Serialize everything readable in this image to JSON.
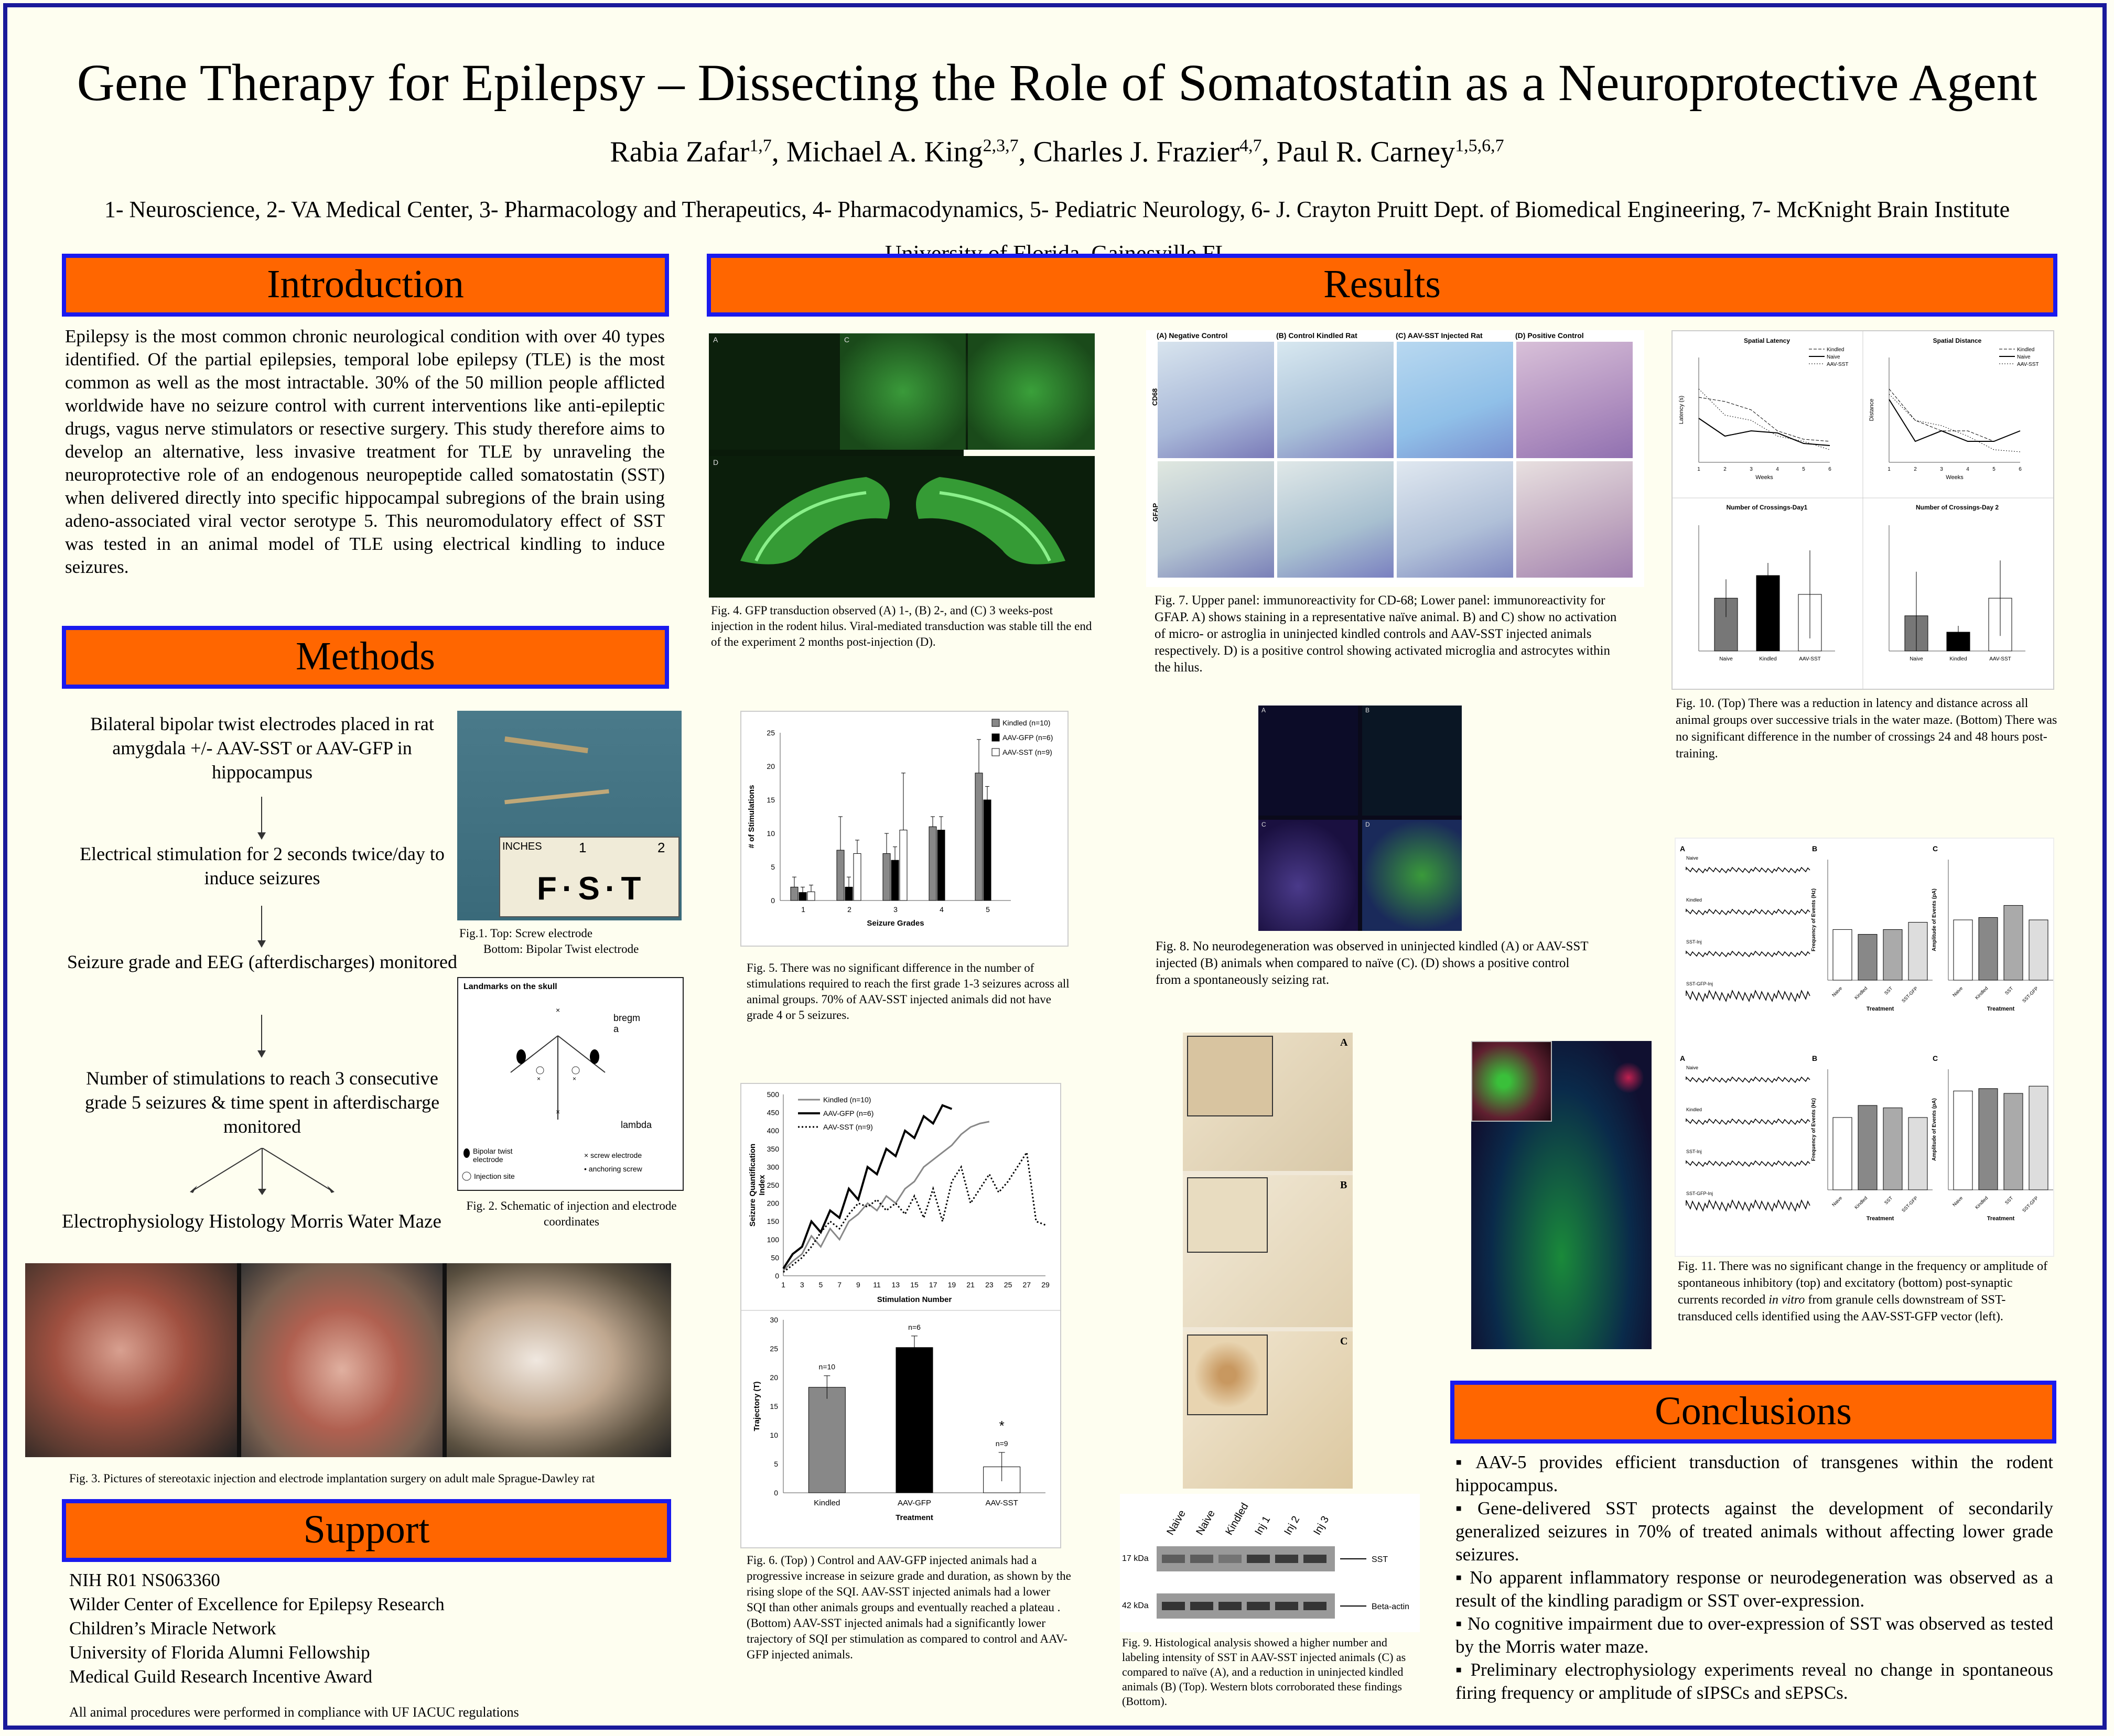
{
  "title": "Gene Therapy for Epilepsy – Dissecting the Role of Somatostatin as a Neuroprotective Agent",
  "authors": [
    {
      "name": "Rabia Zafar",
      "sup": "1,7"
    },
    {
      "name": "Michael A. King",
      "sup": "2,3,7"
    },
    {
      "name": "Charles J. Frazier",
      "sup": "4,7"
    },
    {
      "name": "Paul R. Carney",
      "sup": "1,5,6,7"
    }
  ],
  "affiliations": "1- Neuroscience, 2- VA Medical Center, 3- Pharmacology and Therapeutics, 4- Pharmacodynamics, 5- Pediatric Neurology, 6- J. Crayton Pruitt Dept. of Biomedical Engineering, 7- McKnight Brain Institute",
  "university": "University of Florida, Gainesville FL",
  "sections": {
    "introduction": "Introduction",
    "methods": "Methods",
    "support": "Support",
    "results": "Results",
    "conclusions": "Conclusions"
  },
  "introduction_text": "Epilepsy is the most common chronic neurological condition with over 40 types identified. Of the partial epilepsies, temporal lobe epilepsy (TLE) is the most common as well as the most intractable. 30% of the 50 million people afflicted worldwide have no seizure control with current interventions like anti-epileptic drugs, vagus nerve stimulators or resective surgery. This study therefore aims to develop an alternative, less invasive treatment for TLE by unraveling the neuroprotective role of an endogenous neuropeptide called somatostatin (SST) when delivered directly into specific hippocampal subregions of the brain using adeno-associated viral vector serotype 5. This neuromodulatory effect of SST was tested in an animal model of TLE using electrical kindling to induce seizures.",
  "methods_flow": [
    "Bilateral bipolar twist electrodes placed in rat amygdala +/- AAV-SST or AAV-GFP in hippocampus",
    "Electrical stimulation for 2 seconds twice/day to induce seizures",
    "Seizure grade and EEG (afterdischarges) monitored",
    "Number of stimulations to reach 3 consecutive grade 5 seizures & time spent in afterdischarge monitored"
  ],
  "methods_outcomes": [
    "Electrophysiology",
    "Histology",
    "Morris Water Maze"
  ],
  "fig1_caption": "Fig.1. Top: Screw electrode\n        Bottom: Bipolar Twist electrode",
  "fig1_ruler": {
    "inches": "INCHES",
    "nums": [
      "1",
      "2"
    ],
    "brand": "F·S·T"
  },
  "fig2_caption": "Fig. 2. Schematic of injection and electrode coordinates",
  "fig2_labels": {
    "title": "Landmarks on the skull",
    "bregma": "bregm\na",
    "lambda": "lambda",
    "bipolar": "Bipolar twist electrode",
    "screw": "screw electrode",
    "injection": "Injection site",
    "anchoring": "anchoring screw"
  },
  "fig3_caption": "Fig. 3. Pictures of stereotaxic injection and electrode implantation surgery on adult male Sprague-Dawley rat",
  "support_list": [
    "NIH R01 NS063360",
    "Wilder Center of Excellence for Epilepsy Research",
    "Children’s Miracle Network",
    "University of Florida Alumni Fellowship",
    "Medical Guild Research Incentive Award"
  ],
  "compliance": "All animal procedures were performed in compliance with UF IACUC regulations",
  "fig4_caption": "Fig. 4. GFP transduction observed (A) 1-, (B) 2-, and (C) 3 weeks-post injection in the rodent hilus.  Viral-mediated transduction was stable till the end of the experiment 2 months post-injection (D).",
  "fig4_labels": [
    "A",
    "B",
    "C",
    "D"
  ],
  "fig5_caption": "Fig. 5. There was no significant difference in the number of stimulations required to reach the first grade 1-3 seizures across all animal groups. 70% of  AAV-SST injected animals did not have grade 4 or 5 seizures.",
  "fig6_caption": "Fig. 6. (Top) ) Control and AAV-GFP injected animals had a progressive increase in seizure grade and duration, as shown by the rising slope of the SQI. AAV-SST injected animals had a lower SQI than other animals groups and eventually reached a plateau . (Bottom) AAV-SST injected animals had a significantly lower trajectory of SQI per stimulation as compared to control and AAV-GFP injected animals.",
  "fig7_caption": "Fig. 7. Upper panel: immunoreactivity for CD-68; Lower panel: immunoreactivity for GFAP. A) shows staining in a representative naïve animal. B) and C) show no activation of micro- or astroglia in uninjected kindled controls and AAV-SST injected animals respectively. D) is a positive control showing activated microglia and astrocytes within the hilus.",
  "fig7_headers": [
    "(A) Negative Control",
    "(B) Control Kindled Rat",
    "(C) AAV-SST Injected Rat",
    "(D) Positive Control"
  ],
  "fig7_rows": [
    "CD68",
    "GFAP"
  ],
  "fig8_caption": "Fig. 8.  No neurodegeneration was observed in uninjected kindled (A) or AAV-SST injected (B) animals when compared to naïve (C). (D) shows a positive control from a spontaneously seizing rat.",
  "fig8_labels": [
    "A",
    "B",
    "C",
    "D"
  ],
  "fig9_caption": "Fig. 9. Histological analysis showed a higher number and labeling intensity of SST in AAV-SST injected animals (C) as compared to naïve (A), and a reduction in uninjected kindled animals (B) (Top). Western blots corroborated these findings (Bottom).",
  "fig9_labels": [
    "A",
    "B",
    "C"
  ],
  "fig9_blot": {
    "lanes": [
      "Naive",
      "Naive",
      "Kindled",
      "Inj 1",
      "Inj 2",
      "Inj 3"
    ],
    "rows": [
      {
        "kda": "17 kDa",
        "label": "SST"
      },
      {
        "kda": "42 kDa",
        "label": "Beta-actin"
      }
    ]
  },
  "fig10_caption": "Fig. 10. (Top) There was a reduction in latency and distance across all animal groups over successive trials in the water maze. (Bottom) There was no significant  difference in the number of crossings 24 and 48 hours post-training.",
  "fig10_titles": [
    "Spatial Latency",
    "Spatial Distance",
    "Number of Crossings-Day1",
    "Number of Crossings-Day 2"
  ],
  "fig10_axis": {
    "weeks": "Weeks",
    "latency": "Latency (s)",
    "distance": "Distance"
  },
  "fig10_legend": [
    "Kindled",
    "Naive",
    "AAV-SST"
  ],
  "fig11_caption_parts": [
    "Fig. 11. There was no significant change in the frequency or amplitude of  spontaneous inhibitory (top) and excitatory (bottom) post-synaptic currents recorded ",
    "in vitro",
    " from granule cells downstream of SST-transduced cells identified using the AAV-SST-GFP vector (left)."
  ],
  "fig11_labels": {
    "top": [
      "A",
      "B",
      "C"
    ],
    "traces": [
      "Naive",
      "Kindled",
      "SST-Inj",
      "SST-GFP-Inj"
    ],
    "cats": [
      "Naive",
      "Kindled",
      "SST",
      "SST-GFP"
    ],
    "freq": "Frequency of Events (Hz)",
    "amp": "Amplitude of Events (pA)",
    "treatment": "Treatment"
  },
  "conclusions": [
    "AAV-5 provides efficient transduction of transgenes within the rodent hippocampus.",
    "Gene-delivered SST protects against the development of secondarily generalized seizures in 70% of treated animals without affecting lower grade seizures.",
    "No apparent inflammatory response or neurodegeneration was observed as a result of the kindling paradigm or SST over-expression.",
    "No cognitive impairment due to over-expression of SST was observed as tested by the Morris water maze.",
    "Preliminary electrophysiology experiments reveal no change in spontaneous  firing frequency or amplitude of sIPSCs and sEPSCs."
  ],
  "chart_data": [
    {
      "id": "fig5",
      "type": "bar",
      "categories": [
        "1",
        "2",
        "3",
        "4",
        "5"
      ],
      "xlabel": "Seizure Grades",
      "ylabel": "# of Stimulations",
      "ylim": [
        0,
        25
      ],
      "yticks": [
        0,
        5,
        10,
        15,
        20,
        25
      ],
      "series": [
        {
          "name": "Kindled (n=10)",
          "color": "#888888",
          "values": [
            2,
            7.5,
            7,
            11,
            19
          ]
        },
        {
          "name": "AAV-GFP (n=6)",
          "color": "#000000",
          "values": [
            1.2,
            2,
            6,
            10.5,
            15
          ]
        },
        {
          "name": "AAV-SST (n=9)",
          "color": "#ffffff",
          "values": [
            1.3,
            7,
            10.5,
            null,
            null
          ]
        }
      ],
      "errors": [
        [
          1.5,
          5,
          3,
          1.5,
          5
        ],
        [
          0.8,
          1.5,
          2,
          2,
          2
        ],
        [
          1,
          2,
          8.5,
          null,
          null
        ]
      ],
      "legend": "top-right"
    },
    {
      "id": "fig6-top",
      "type": "line",
      "xlabel": "Stimulation Number",
      "ylabel": "Seizure Quantification Index",
      "ylim": [
        0,
        500
      ],
      "yticks": [
        0,
        50,
        100,
        150,
        200,
        250,
        300,
        350,
        400,
        450,
        500
      ],
      "xticks": [
        1,
        3,
        5,
        7,
        9,
        11,
        13,
        15,
        17,
        19,
        21,
        23,
        25,
        27,
        29
      ],
      "series": [
        {
          "name": "Kindled (n=10)",
          "style": "gray",
          "x": [
            1,
            2,
            3,
            4,
            5,
            6,
            7,
            8,
            9,
            10,
            11,
            12,
            13,
            14,
            15,
            16,
            17,
            18,
            19,
            20,
            21,
            22,
            23
          ],
          "y": [
            15,
            40,
            60,
            110,
            80,
            130,
            100,
            150,
            170,
            200,
            180,
            220,
            200,
            240,
            260,
            300,
            320,
            340,
            360,
            390,
            410,
            420,
            425
          ]
        },
        {
          "name": "AAV-GFP (n=6)",
          "style": "black",
          "x": [
            1,
            2,
            3,
            4,
            5,
            6,
            7,
            8,
            9,
            10,
            11,
            12,
            13,
            14,
            15,
            16,
            17,
            18,
            19
          ],
          "y": [
            20,
            60,
            80,
            150,
            120,
            180,
            160,
            240,
            210,
            300,
            280,
            350,
            330,
            400,
            380,
            440,
            420,
            470,
            460
          ]
        },
        {
          "name": "AAV-SST (n=9)",
          "style": "dotted",
          "x": [
            1,
            2,
            3,
            4,
            5,
            6,
            7,
            8,
            9,
            10,
            11,
            12,
            13,
            14,
            15,
            16,
            17,
            18,
            19,
            20,
            21,
            22,
            23,
            24,
            25,
            26,
            27,
            28,
            29
          ],
          "y": [
            10,
            30,
            50,
            80,
            120,
            150,
            130,
            170,
            200,
            190,
            210,
            180,
            200,
            170,
            220,
            160,
            240,
            150,
            260,
            300,
            200,
            240,
            280,
            230,
            260,
            300,
            340,
            150,
            140
          ]
        }
      ],
      "legend": "top-left"
    },
    {
      "id": "fig6-bottom",
      "type": "bar",
      "categories": [
        "Kindled",
        "AAV-GFP",
        "AAV-SST"
      ],
      "values": [
        18.3,
        25.2,
        4.5
      ],
      "errors": [
        2,
        2,
        2.5
      ],
      "colors": [
        "#888888",
        "#000000",
        "#ffffff"
      ],
      "annotations": [
        "n=10",
        "n=6",
        "n=9"
      ],
      "significance": [
        "",
        "",
        "*"
      ],
      "xlabel": "Treatment",
      "ylabel": "Trajectory (T)",
      "ylim": [
        0,
        30
      ],
      "yticks": [
        0,
        5,
        10,
        15,
        20,
        25,
        30
      ]
    }
  ]
}
